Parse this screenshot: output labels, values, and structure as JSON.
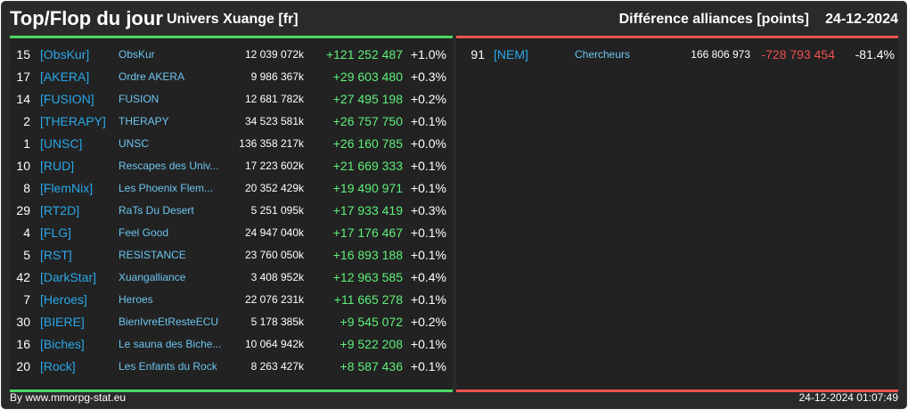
{
  "header": {
    "title": "Top/Flop du jour",
    "universe": "Univers Xuange [fr]",
    "diff_label": "Différence alliances [points]",
    "date": "24-12-2024"
  },
  "colors": {
    "gain": "#5ef07a",
    "loss": "#f05050",
    "tag": "#29a8e8",
    "top_border": "#4cd964",
    "flop_border": "#ef5350"
  },
  "top": [
    {
      "rank": "15",
      "tag": "[ObsKur]",
      "name": "ObsKur",
      "points": "12 039 072k",
      "diff": "+121 252 487",
      "pct": "+1.0%"
    },
    {
      "rank": "17",
      "tag": "[AKERA]",
      "name": "Ordre AKERA",
      "points": "9 986 367k",
      "diff": "+29 603 480",
      "pct": "+0.3%"
    },
    {
      "rank": "14",
      "tag": "[FUSION]",
      "name": "FUSION",
      "points": "12 681 782k",
      "diff": "+27 495 198",
      "pct": "+0.2%"
    },
    {
      "rank": "2",
      "tag": "[THERAPY]",
      "name": "THERAPY",
      "points": "34 523 581k",
      "diff": "+26 757 750",
      "pct": "+0.1%"
    },
    {
      "rank": "1",
      "tag": "[UNSC]",
      "name": "UNSC",
      "points": "136 358 217k",
      "diff": "+26 160 785",
      "pct": "+0.0%"
    },
    {
      "rank": "10",
      "tag": "[RUD]",
      "name": "Rescapes des Univ...",
      "points": "17 223 602k",
      "diff": "+21 669 333",
      "pct": "+0.1%"
    },
    {
      "rank": "8",
      "tag": "[FlemNix]",
      "name": "Les Phoenix Flem...",
      "points": "20 352 429k",
      "diff": "+19 490 971",
      "pct": "+0.1%"
    },
    {
      "rank": "29",
      "tag": "[RT2D]",
      "name": "RaTs Du Desert",
      "points": "5 251 095k",
      "diff": "+17 933 419",
      "pct": "+0.3%"
    },
    {
      "rank": "4",
      "tag": "[FLG]",
      "name": "Feel Good",
      "points": "24 947 040k",
      "diff": "+17 176 467",
      "pct": "+0.1%"
    },
    {
      "rank": "5",
      "tag": "[RST]",
      "name": "RESISTANCE",
      "points": "23 760 050k",
      "diff": "+16 893 188",
      "pct": "+0.1%"
    },
    {
      "rank": "42",
      "tag": "[DarkStar]",
      "name": "Xuangalliance",
      "points": "3 408 952k",
      "diff": "+12 963 585",
      "pct": "+0.4%"
    },
    {
      "rank": "7",
      "tag": "[Heroes]",
      "name": "Heroes",
      "points": "22 076 231k",
      "diff": "+11 665 278",
      "pct": "+0.1%"
    },
    {
      "rank": "30",
      "tag": "[BIERE]",
      "name": "BienIvreEtResteECU",
      "points": "5 178 385k",
      "diff": "+9 545 072",
      "pct": "+0.2%"
    },
    {
      "rank": "16",
      "tag": "[Biches]",
      "name": "Le sauna des Biche...",
      "points": "10 064 942k",
      "diff": "+9 522 208",
      "pct": "+0.1%"
    },
    {
      "rank": "20",
      "tag": "[Rock]",
      "name": "Les Enfants du Rock",
      "points": "8 263 427k",
      "diff": "+8 587 436",
      "pct": "+0.1%"
    }
  ],
  "flop": [
    {
      "rank": "91",
      "tag": "[NEM]",
      "name": "Chercheurs",
      "points": "166 806 973",
      "diff": "-728 793 454",
      "pct": "-81.4%"
    }
  ],
  "footer": {
    "source": "By www.mmorpg-stat.eu",
    "timestamp": "24-12-2024 01:07:49"
  }
}
